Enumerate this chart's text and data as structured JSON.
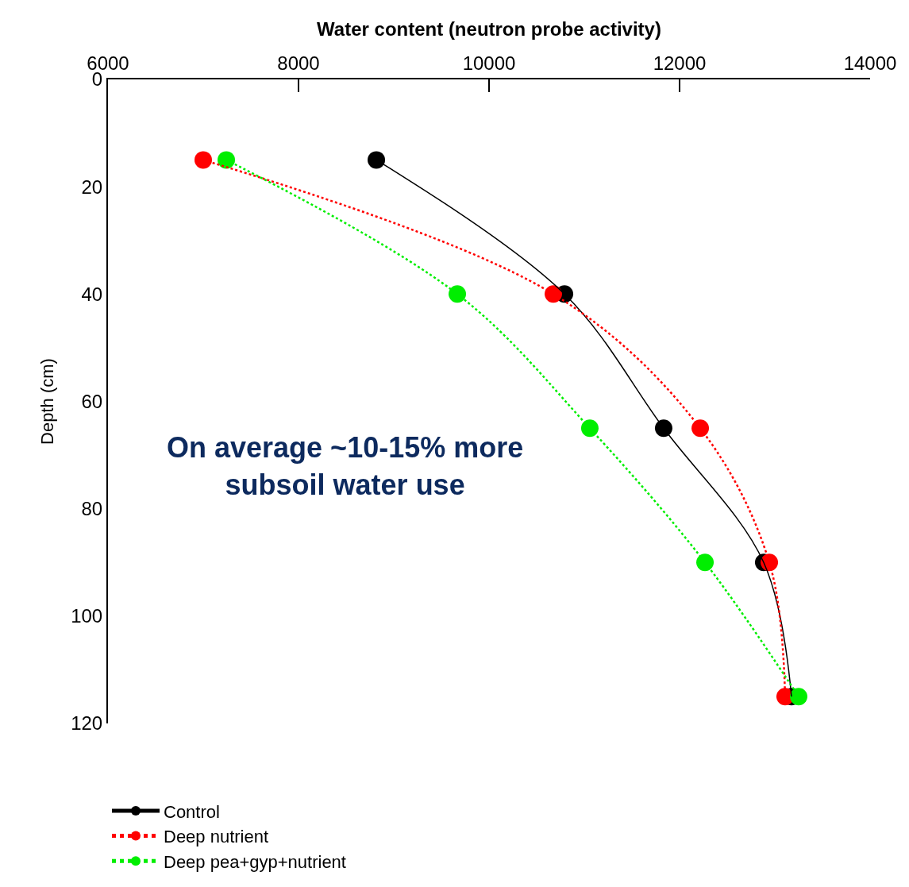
{
  "chart_data": {
    "type": "line",
    "xlabel": "Water content (neutron probe activity)",
    "ylabel": "Depth (cm)",
    "xlim": [
      6000,
      14000
    ],
    "xticks": [
      6000,
      8000,
      10000,
      12000,
      14000
    ],
    "ylim": [
      120,
      0
    ],
    "yticks": [
      0,
      20,
      40,
      60,
      80,
      100,
      120
    ],
    "legend": "bottom left",
    "marker": "circle",
    "annotations": [
      "On average ~10-15% more subsoil water use"
    ],
    "series": [
      {
        "name": "Control",
        "color": "#000000",
        "line_style": "solid",
        "x": [
          8817,
          10792,
          11833,
          12883,
          13175
        ],
        "values": [
          15,
          40,
          65,
          90,
          115
        ]
      },
      {
        "name": "Deep nutrient",
        "color": "#ff0000",
        "line_style": "dotted",
        "x": [
          7000,
          10675,
          12217,
          12942,
          13108
        ],
        "values": [
          15,
          40,
          65,
          90,
          115
        ]
      },
      {
        "name": "Deep pea+gyp+nutrient",
        "color": "#00ee00",
        "line_style": "dotted",
        "x": [
          7242,
          9667,
          11058,
          12267,
          13250
        ],
        "values": [
          15,
          40,
          65,
          90,
          115
        ]
      }
    ]
  }
}
